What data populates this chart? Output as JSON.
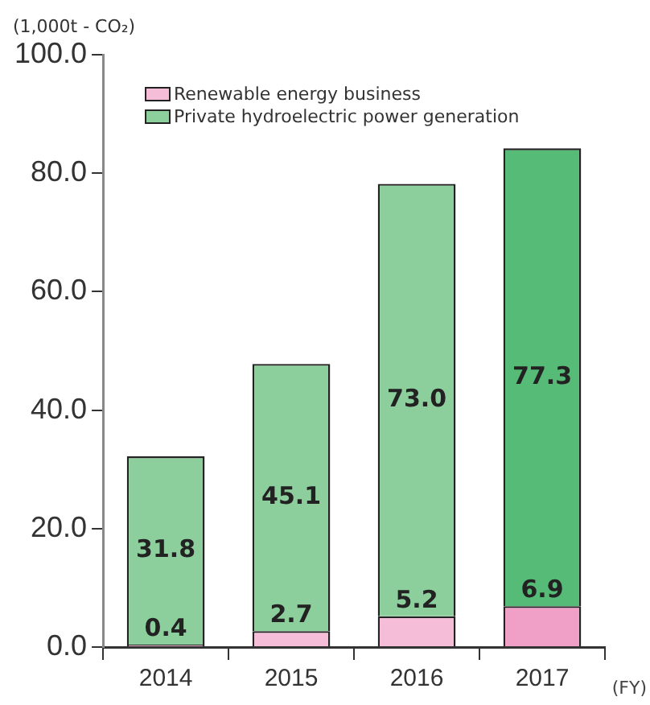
{
  "chart_data": {
    "type": "bar",
    "stacked": true,
    "ylabel": "(1,000t - CO₂)",
    "xlabel": "(FY)",
    "categories": [
      "2014",
      "2015",
      "2016",
      "2017"
    ],
    "series": [
      {
        "name": "Renewable energy business",
        "color": "#f6bdd8",
        "colors": [
          "#f6bdd8",
          "#f6bdd8",
          "#f6bdd8",
          "#f0a0c6"
        ],
        "values": [
          0.4,
          2.7,
          5.2,
          6.9
        ],
        "value_labels": [
          "0.4",
          "2.7",
          "5.2",
          "6.9"
        ]
      },
      {
        "name": "Private hydroelectric power generation",
        "color": "#8dcf9c",
        "colors": [
          "#8dcf9c",
          "#8dcf9c",
          "#8dcf9c",
          "#55bb76"
        ],
        "values": [
          31.8,
          45.1,
          73.0,
          77.3
        ],
        "value_labels": [
          "31.8",
          "45.1",
          "73.0",
          "77.3"
        ]
      }
    ],
    "ylim": [
      0,
      100
    ],
    "yticks": [
      {
        "value": 0,
        "label": "0.0"
      },
      {
        "value": 20,
        "label": "20.0"
      },
      {
        "value": 40,
        "label": "40.0"
      },
      {
        "value": 60,
        "label": "60.0"
      },
      {
        "value": 80,
        "label": "80.0"
      },
      {
        "value": 100,
        "label": "100.0"
      }
    ],
    "grid": false,
    "legend": "top left"
  }
}
